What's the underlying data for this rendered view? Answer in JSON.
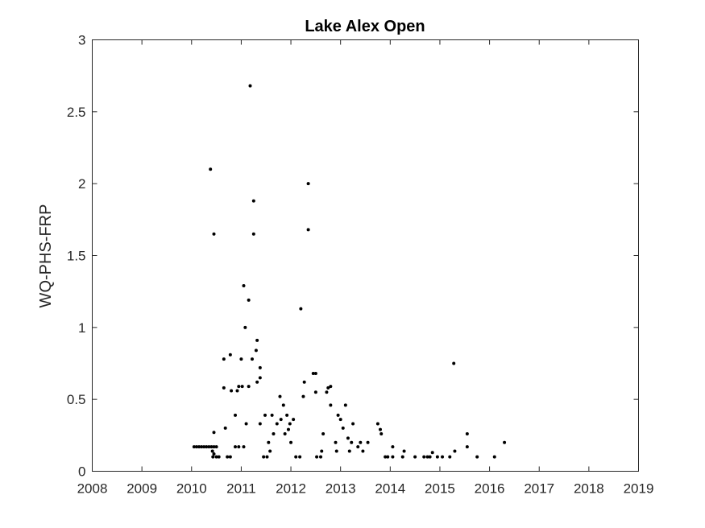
{
  "chart_data": {
    "type": "scatter",
    "title": "Lake Alex Open",
    "xlabel": "",
    "ylabel": "WQ-PHS-FRP",
    "xlim": [
      2008,
      2019
    ],
    "ylim": [
      0,
      3
    ],
    "xticks": [
      "2008",
      "2009",
      "2010",
      "2011",
      "2012",
      "2013",
      "2014",
      "2015",
      "2016",
      "2017",
      "2018",
      "2019"
    ],
    "yticks": [
      "0",
      "0.5",
      "1",
      "1.5",
      "2",
      "2.5",
      "3"
    ],
    "grid": false,
    "point_color": "#000000",
    "points": [
      [
        2010.05,
        0.17
      ],
      [
        2010.1,
        0.17
      ],
      [
        2010.15,
        0.17
      ],
      [
        2010.2,
        0.17
      ],
      [
        2010.25,
        0.17
      ],
      [
        2010.3,
        0.17
      ],
      [
        2010.35,
        0.17
      ],
      [
        2010.4,
        0.17
      ],
      [
        2010.45,
        0.17
      ],
      [
        2010.5,
        0.17
      ],
      [
        2010.38,
        2.1
      ],
      [
        2010.45,
        1.65
      ],
      [
        2010.42,
        0.14
      ],
      [
        2010.45,
        0.12
      ],
      [
        2010.43,
        0.1
      ],
      [
        2010.5,
        0.1
      ],
      [
        2010.55,
        0.1
      ],
      [
        2010.45,
        0.27
      ],
      [
        2010.65,
        0.78
      ],
      [
        2010.65,
        0.58
      ],
      [
        2010.68,
        0.3
      ],
      [
        2010.72,
        0.1
      ],
      [
        2010.78,
        0.1
      ],
      [
        2010.78,
        0.81
      ],
      [
        2010.8,
        0.56
      ],
      [
        2010.88,
        0.39
      ],
      [
        2010.88,
        0.17
      ],
      [
        2010.92,
        0.56
      ],
      [
        2010.95,
        0.59
      ],
      [
        2010.95,
        0.17
      ],
      [
        2011.0,
        0.78
      ],
      [
        2011.02,
        0.59
      ],
      [
        2011.05,
        0.17
      ],
      [
        2011.05,
        1.29
      ],
      [
        2011.08,
        1.0
      ],
      [
        2011.1,
        0.33
      ],
      [
        2011.15,
        0.59
      ],
      [
        2011.15,
        1.19
      ],
      [
        2011.18,
        2.68
      ],
      [
        2011.22,
        0.78
      ],
      [
        2011.25,
        1.88
      ],
      [
        2011.25,
        1.65
      ],
      [
        2011.3,
        0.84
      ],
      [
        2011.32,
        0.91
      ],
      [
        2011.32,
        0.62
      ],
      [
        2011.38,
        0.72
      ],
      [
        2011.38,
        0.65
      ],
      [
        2011.38,
        0.33
      ],
      [
        2011.45,
        0.1
      ],
      [
        2011.48,
        0.39
      ],
      [
        2011.52,
        0.1
      ],
      [
        2011.55,
        0.2
      ],
      [
        2011.58,
        0.14
      ],
      [
        2011.62,
        0.39
      ],
      [
        2011.65,
        0.26
      ],
      [
        2011.72,
        0.33
      ],
      [
        2011.78,
        0.52
      ],
      [
        2011.8,
        0.36
      ],
      [
        2011.85,
        0.46
      ],
      [
        2011.88,
        0.26
      ],
      [
        2011.92,
        0.39
      ],
      [
        2011.95,
        0.29
      ],
      [
        2011.98,
        0.33
      ],
      [
        2012.0,
        0.2
      ],
      [
        2012.05,
        0.36
      ],
      [
        2012.1,
        0.1
      ],
      [
        2012.18,
        0.1
      ],
      [
        2012.2,
        1.13
      ],
      [
        2012.25,
        0.52
      ],
      [
        2012.27,
        0.62
      ],
      [
        2012.35,
        2.0
      ],
      [
        2012.35,
        1.68
      ],
      [
        2012.45,
        0.68
      ],
      [
        2012.5,
        0.68
      ],
      [
        2012.5,
        0.55
      ],
      [
        2012.52,
        0.1
      ],
      [
        2012.6,
        0.1
      ],
      [
        2012.62,
        0.14
      ],
      [
        2012.65,
        0.26
      ],
      [
        2012.72,
        0.55
      ],
      [
        2012.75,
        0.58
      ],
      [
        2012.8,
        0.59
      ],
      [
        2012.8,
        0.46
      ],
      [
        2012.9,
        0.2
      ],
      [
        2012.92,
        0.14
      ],
      [
        2012.95,
        0.39
      ],
      [
        2013.0,
        0.36
      ],
      [
        2013.05,
        0.3
      ],
      [
        2013.1,
        0.46
      ],
      [
        2013.15,
        0.23
      ],
      [
        2013.18,
        0.14
      ],
      [
        2013.22,
        0.2
      ],
      [
        2013.25,
        0.33
      ],
      [
        2013.35,
        0.17
      ],
      [
        2013.4,
        0.2
      ],
      [
        2013.45,
        0.14
      ],
      [
        2013.55,
        0.2
      ],
      [
        2013.75,
        0.33
      ],
      [
        2013.8,
        0.29
      ],
      [
        2013.82,
        0.26
      ],
      [
        2013.9,
        0.1
      ],
      [
        2013.95,
        0.1
      ],
      [
        2014.05,
        0.17
      ],
      [
        2014.05,
        0.1
      ],
      [
        2014.25,
        0.1
      ],
      [
        2014.28,
        0.14
      ],
      [
        2014.5,
        0.1
      ],
      [
        2014.68,
        0.1
      ],
      [
        2014.75,
        0.1
      ],
      [
        2014.8,
        0.1
      ],
      [
        2014.85,
        0.13
      ],
      [
        2014.95,
        0.1
      ],
      [
        2015.05,
        0.1
      ],
      [
        2015.2,
        0.1
      ],
      [
        2015.28,
        0.75
      ],
      [
        2015.3,
        0.14
      ],
      [
        2015.55,
        0.26
      ],
      [
        2015.55,
        0.17
      ],
      [
        2015.75,
        0.1
      ],
      [
        2016.1,
        0.1
      ],
      [
        2016.3,
        0.2
      ]
    ]
  }
}
